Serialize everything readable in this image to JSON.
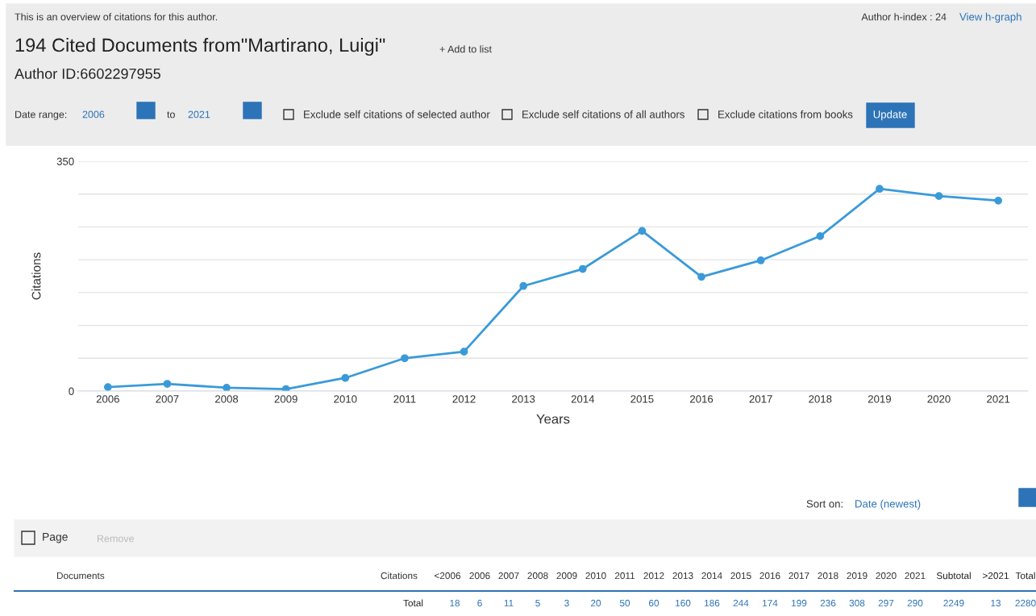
{
  "chart_data": {
    "type": "line",
    "title": "194 Cited Documents from\"Martirano, Luigi\"",
    "xlabel": "Years",
    "ylabel": "Citations",
    "categories": [
      "2006",
      "2007",
      "2008",
      "2009",
      "2010",
      "2011",
      "2012",
      "2013",
      "2014",
      "2015",
      "2016",
      "2017",
      "2018",
      "2019",
      "2020",
      "2021"
    ],
    "series": [
      {
        "color": "#3a9ad9",
        "values": [
          6,
          11,
          5,
          3,
          20,
          50,
          60,
          160,
          186,
          244,
          174,
          199,
          236,
          308,
          297,
          290
        ]
      }
    ],
    "ylim": [
      0,
      350
    ],
    "yticks": [
      0,
      {
        "value": 50,
        "label": null
      },
      {
        "value": 100,
        "label": null
      },
      {
        "value": 150,
        "label": null
      },
      {
        "value": 200,
        "label": null
      },
      {
        "value": 250,
        "label": null
      },
      {
        "value": 300,
        "label": null
      },
      350
    ],
    "grid": "y",
    "marker": "circle",
    "line_style": "solid",
    "annotations": [
      "This is an overview of citations for this author.",
      "Author h-index : 24",
      "View h-graph",
      "+ Add to list",
      "Author ID:6602297955",
      "Date range:",
      "2006",
      "to",
      "2021",
      "Exclude self citations of selected author",
      "Exclude self citations of all authors",
      "Exclude citations from books",
      "Update",
      "Sort on:",
      "Date (newest)",
      "Page",
      "Remove",
      "Documents",
      "Citations",
      "<2006",
      "Subtotal",
      ">2021",
      "Total",
      "Total",
      "18",
      "2249",
      "13",
      "2280",
      "2006",
      "2007",
      "2008",
      "2009",
      "2010",
      "2011",
      "2012",
      "2013",
      "2014",
      "2015",
      "2016",
      "2017",
      "2018",
      "2019",
      "2020",
      "2021",
      "6",
      "11",
      "5",
      "3",
      "20",
      "50",
      "60",
      "160",
      "186",
      "244",
      "174",
      "199",
      "236",
      "308",
      "297",
      "290"
    ]
  }
}
